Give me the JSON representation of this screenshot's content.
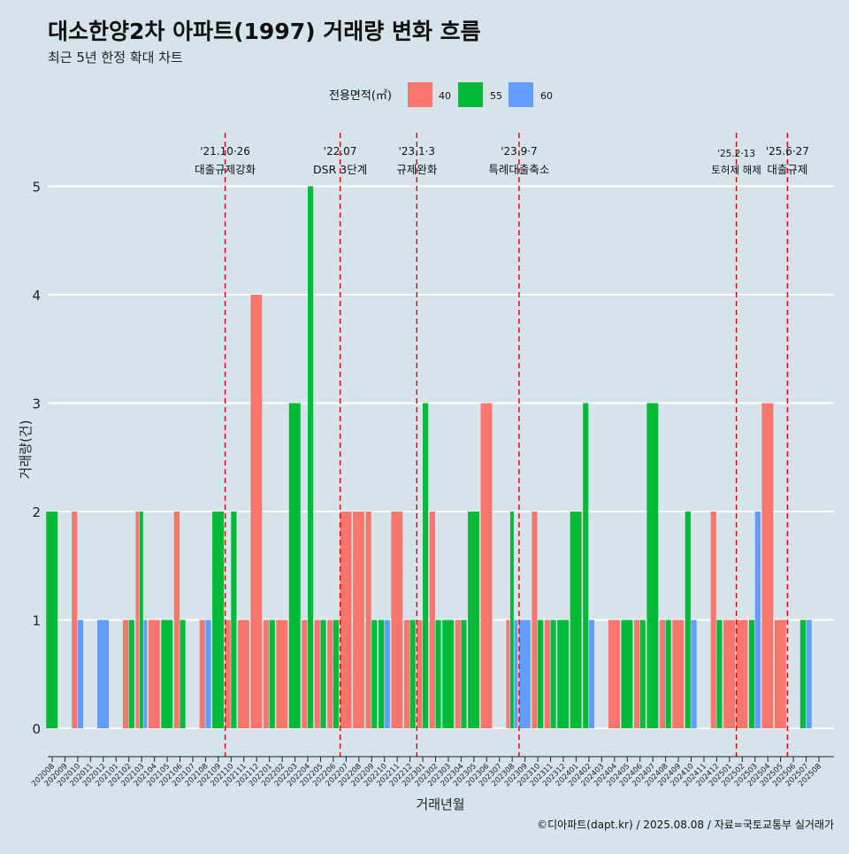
{
  "chart_data": {
    "type": "bar",
    "title": "대소한양2차 아파트(1997) 거래량 변화 흐름",
    "subtitle": "최근 5년 한정 확대 차트",
    "xlabel": "거래년월",
    "ylabel": "거래량(건)",
    "ylim": [
      0,
      5
    ],
    "yticks": [
      0,
      1,
      2,
      3,
      4,
      5
    ],
    "grid": true,
    "legend": {
      "title": "전용면적(㎡)",
      "placement": "top",
      "entries": [
        "40",
        "55",
        "60"
      ]
    },
    "caption": "©디아파트(dapt.kr) / 2025.08.08 / 자료=국토교통부 실거래가",
    "colors": {
      "40": "#f8766d",
      "55": "#00ba38",
      "60": "#619cff",
      "background": "#d5e3ea",
      "event_line": "#e00000"
    },
    "categories": [
      "202008",
      "202009",
      "202010",
      "202011",
      "202012",
      "202101",
      "202102",
      "202103",
      "202104",
      "202105",
      "202106",
      "202107",
      "202108",
      "202109",
      "202110",
      "202111",
      "202112",
      "202201",
      "202202",
      "202203",
      "202204",
      "202205",
      "202206",
      "202207",
      "202208",
      "202209",
      "202210",
      "202211",
      "202212",
      "202301",
      "202302",
      "202303",
      "202304",
      "202305",
      "202306",
      "202307",
      "202308",
      "202309",
      "202310",
      "202311",
      "202312",
      "202401",
      "202402",
      "202403",
      "202404",
      "202405",
      "202406",
      "202407",
      "202408",
      "202409",
      "202410",
      "202411",
      "202412",
      "202501",
      "202502",
      "202503",
      "202504",
      "202505",
      "202506",
      "202507",
      "202508"
    ],
    "bars": [
      {
        "month": "202008",
        "series": "55",
        "value": 2
      },
      {
        "month": "202010",
        "series": "40",
        "value": 2
      },
      {
        "month": "202010",
        "series": "60",
        "value": 1
      },
      {
        "month": "202012",
        "series": "60",
        "value": 1
      },
      {
        "month": "202102",
        "series": "40",
        "value": 1
      },
      {
        "month": "202102",
        "series": "55",
        "value": 1
      },
      {
        "month": "202103",
        "series": "40",
        "value": 2
      },
      {
        "month": "202103",
        "series": "55",
        "value": 2
      },
      {
        "month": "202103",
        "series": "60",
        "value": 1
      },
      {
        "month": "202104",
        "series": "40",
        "value": 1
      },
      {
        "month": "202105",
        "series": "55",
        "value": 1
      },
      {
        "month": "202106",
        "series": "40",
        "value": 2
      },
      {
        "month": "202106",
        "series": "55",
        "value": 1
      },
      {
        "month": "202108",
        "series": "40",
        "value": 1
      },
      {
        "month": "202108",
        "series": "60",
        "value": 1
      },
      {
        "month": "202109",
        "series": "55",
        "value": 2
      },
      {
        "month": "202110",
        "series": "40",
        "value": 1
      },
      {
        "month": "202110",
        "series": "55",
        "value": 2
      },
      {
        "month": "202111",
        "series": "40",
        "value": 1
      },
      {
        "month": "202112",
        "series": "40",
        "value": 4
      },
      {
        "month": "202201",
        "series": "40",
        "value": 1
      },
      {
        "month": "202201",
        "series": "55",
        "value": 1
      },
      {
        "month": "202202",
        "series": "40",
        "value": 1
      },
      {
        "month": "202203",
        "series": "55",
        "value": 3
      },
      {
        "month": "202204",
        "series": "40",
        "value": 1
      },
      {
        "month": "202204",
        "series": "55",
        "value": 5
      },
      {
        "month": "202205",
        "series": "40",
        "value": 1
      },
      {
        "month": "202205",
        "series": "55",
        "value": 1
      },
      {
        "month": "202206",
        "series": "40",
        "value": 1
      },
      {
        "month": "202206",
        "series": "55",
        "value": 1
      },
      {
        "month": "202207",
        "series": "40",
        "value": 2
      },
      {
        "month": "202208",
        "series": "40",
        "value": 2
      },
      {
        "month": "202209",
        "series": "40",
        "value": 2
      },
      {
        "month": "202209",
        "series": "55",
        "value": 1
      },
      {
        "month": "202210",
        "series": "55",
        "value": 1
      },
      {
        "month": "202210",
        "series": "60",
        "value": 1
      },
      {
        "month": "202211",
        "series": "40",
        "value": 2
      },
      {
        "month": "202212",
        "series": "40",
        "value": 1
      },
      {
        "month": "202212",
        "series": "55",
        "value": 1
      },
      {
        "month": "202301",
        "series": "40",
        "value": 1
      },
      {
        "month": "202301",
        "series": "55",
        "value": 3
      },
      {
        "month": "202302",
        "series": "40",
        "value": 2
      },
      {
        "month": "202302",
        "series": "55",
        "value": 1
      },
      {
        "month": "202303",
        "series": "55",
        "value": 1
      },
      {
        "month": "202304",
        "series": "40",
        "value": 1
      },
      {
        "month": "202304",
        "series": "55",
        "value": 1
      },
      {
        "month": "202305",
        "series": "55",
        "value": 2
      },
      {
        "month": "202306",
        "series": "40",
        "value": 3
      },
      {
        "month": "202308",
        "series": "40",
        "value": 1
      },
      {
        "month": "202308",
        "series": "55",
        "value": 2
      },
      {
        "month": "202308",
        "series": "60",
        "value": 1
      },
      {
        "month": "202309",
        "series": "60",
        "value": 1
      },
      {
        "month": "202310",
        "series": "40",
        "value": 2
      },
      {
        "month": "202310",
        "series": "55",
        "value": 1
      },
      {
        "month": "202311",
        "series": "40",
        "value": 1
      },
      {
        "month": "202311",
        "series": "55",
        "value": 1
      },
      {
        "month": "202312",
        "series": "55",
        "value": 1
      },
      {
        "month": "202401",
        "series": "55",
        "value": 2
      },
      {
        "month": "202402",
        "series": "55",
        "value": 3
      },
      {
        "month": "202402",
        "series": "60",
        "value": 1
      },
      {
        "month": "202404",
        "series": "40",
        "value": 1
      },
      {
        "month": "202405",
        "series": "55",
        "value": 1
      },
      {
        "month": "202406",
        "series": "40",
        "value": 1
      },
      {
        "month": "202406",
        "series": "55",
        "value": 1
      },
      {
        "month": "202407",
        "series": "55",
        "value": 3
      },
      {
        "month": "202408",
        "series": "40",
        "value": 1
      },
      {
        "month": "202408",
        "series": "55",
        "value": 1
      },
      {
        "month": "202409",
        "series": "40",
        "value": 1
      },
      {
        "month": "202410",
        "series": "55",
        "value": 2
      },
      {
        "month": "202410",
        "series": "60",
        "value": 1
      },
      {
        "month": "202412",
        "series": "40",
        "value": 2
      },
      {
        "month": "202412",
        "series": "55",
        "value": 1
      },
      {
        "month": "202501",
        "series": "40",
        "value": 1
      },
      {
        "month": "202502",
        "series": "40",
        "value": 1
      },
      {
        "month": "202503",
        "series": "55",
        "value": 1
      },
      {
        "month": "202503",
        "series": "60",
        "value": 2
      },
      {
        "month": "202504",
        "series": "40",
        "value": 3
      },
      {
        "month": "202505",
        "series": "40",
        "value": 1
      },
      {
        "month": "202507",
        "series": "55",
        "value": 1
      },
      {
        "month": "202507",
        "series": "60",
        "value": 1
      }
    ],
    "annotations": [
      {
        "date": "'21.10·26",
        "label": "대출규제강화",
        "month": "202110"
      },
      {
        "date": "'22.07",
        "label": "DSR 3단계",
        "month": "202207"
      },
      {
        "date": "'23.1·3",
        "label": "규제완화",
        "month": "202301"
      },
      {
        "date": "'23.9·7",
        "label": "특례대출축소",
        "month": "202309"
      },
      {
        "date": "'25.2·13",
        "label": "토허제 해제",
        "month": "202502"
      },
      {
        "date": "'25.6·27",
        "label": "대출규제",
        "month": "202506"
      }
    ]
  }
}
